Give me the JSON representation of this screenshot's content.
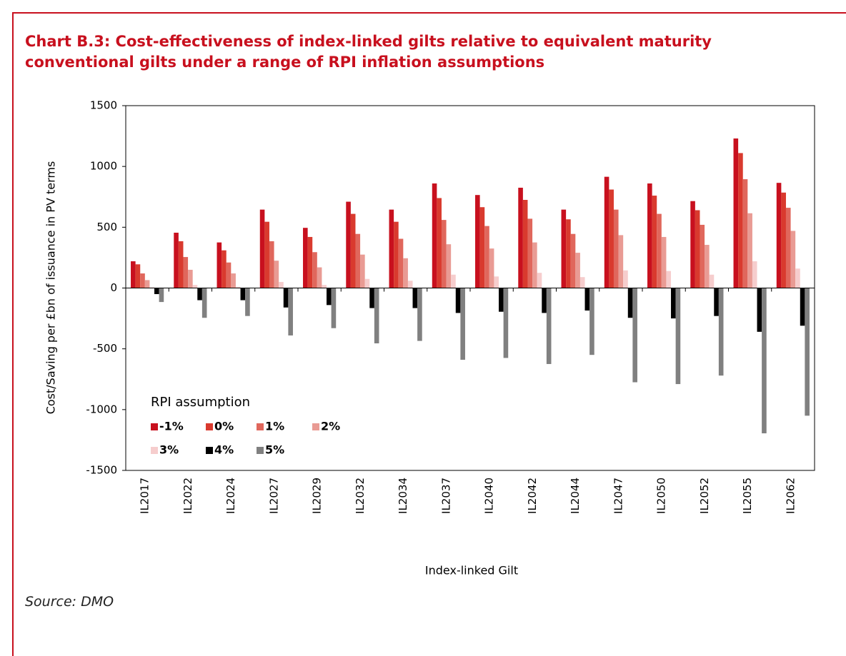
{
  "chart_data": {
    "type": "bar",
    "title": "Chart B.3: Cost-effectiveness of index-linked gilts relative to equivalent maturity conventional gilts under a range of RPI inflation assumptions",
    "x_label": "Index-linked Gilt",
    "y_label": "Cost/Saving per £bn of issuance in PV terms",
    "source": "Source: DMO",
    "categories": [
      "IL2017",
      "IL2022",
      "IL2024",
      "IL2027",
      "IL2029",
      "IL2032",
      "IL2034",
      "IL2037",
      "IL2040",
      "IL2042",
      "IL2044",
      "IL2047",
      "IL2050",
      "IL2052",
      "IL2055",
      "IL2062"
    ],
    "series": [
      {
        "name": "-1%",
        "color": "#c8101e",
        "values": [
          220,
          455,
          375,
          645,
          495,
          710,
          645,
          860,
          765,
          825,
          645,
          915,
          860,
          715,
          1230,
          865
        ]
      },
      {
        "name": "0%",
        "color": "#d93a2e",
        "values": [
          195,
          385,
          310,
          545,
          420,
          610,
          545,
          740,
          665,
          725,
          565,
          810,
          760,
          640,
          1110,
          785
        ]
      },
      {
        "name": "1%",
        "color": "#e0675c",
        "values": [
          120,
          255,
          210,
          385,
          295,
          445,
          405,
          560,
          510,
          570,
          445,
          645,
          610,
          520,
          895,
          660
        ]
      },
      {
        "name": "2%",
        "color": "#e99b94",
        "values": [
          65,
          150,
          120,
          225,
          170,
          275,
          245,
          360,
          325,
          375,
          290,
          435,
          420,
          355,
          615,
          470
        ]
      },
      {
        "name": "3%",
        "color": "#f6cdcd",
        "values": [
          5,
          25,
          10,
          50,
          25,
          75,
          60,
          110,
          95,
          125,
          90,
          145,
          140,
          110,
          220,
          160
        ]
      },
      {
        "name": "4%",
        "color": "#000000",
        "values": [
          -50,
          -100,
          -100,
          -160,
          -140,
          -165,
          -165,
          -205,
          -195,
          -205,
          -185,
          -245,
          -250,
          -230,
          -360,
          -310
        ]
      },
      {
        "name": "5%",
        "color": "#808080",
        "values": [
          -115,
          -245,
          -230,
          -390,
          -330,
          -455,
          -435,
          -590,
          -575,
          -625,
          -550,
          -775,
          -790,
          -720,
          -1195,
          -1050
        ]
      }
    ],
    "ylim": [
      -1500,
      1500
    ],
    "yticks": [
      -1500,
      -1000,
      -500,
      0,
      500,
      1000,
      1500
    ],
    "legend": {
      "title": "RPI assumption",
      "position": "lower left"
    }
  }
}
